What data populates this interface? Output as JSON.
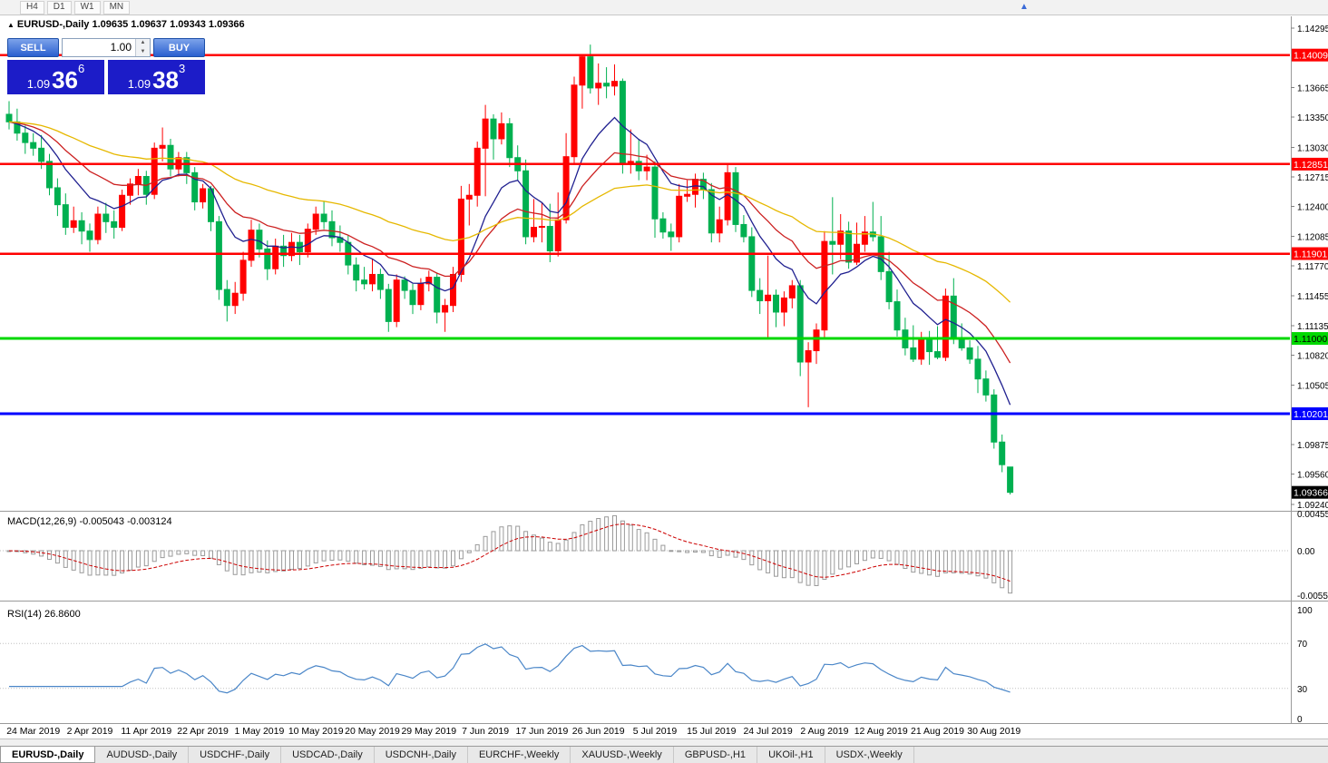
{
  "toolbar": {
    "periods": [
      "H4",
      "D1",
      "W1",
      "MN"
    ]
  },
  "chart_header": {
    "marker": "▲",
    "title": "EURUSD-,Daily",
    "ohlc": "1.09635 1.09637 1.09343 1.09366"
  },
  "one_click": {
    "sell_label": "SELL",
    "buy_label": "BUY",
    "volume": "1.00",
    "sell_price": {
      "big": "1.09",
      "mid": "36",
      "sup": "6"
    },
    "buy_price": {
      "big": "1.09",
      "mid": "38",
      "sup": "3"
    }
  },
  "chart_data": {
    "type": "candlestick",
    "symbol": "EURUSD-",
    "timeframe": "Daily",
    "up_color": "#ff0000",
    "down_color": "#00b050",
    "candles": [
      [
        1.1338,
        1.1352,
        1.1322,
        1.133
      ],
      [
        1.133,
        1.1344,
        1.131,
        1.1318
      ],
      [
        1.1318,
        1.1326,
        1.1296,
        1.1308
      ],
      [
        1.1308,
        1.1318,
        1.1294,
        1.1302
      ],
      [
        1.1302,
        1.1316,
        1.128,
        1.1288
      ],
      [
        1.1288,
        1.1296,
        1.1252,
        1.126
      ],
      [
        1.126,
        1.127,
        1.123,
        1.1242
      ],
      [
        1.1242,
        1.1254,
        1.121,
        1.1218
      ],
      [
        1.1218,
        1.124,
        1.1212,
        1.1225
      ],
      [
        1.1225,
        1.1234,
        1.12,
        1.1214
      ],
      [
        1.1214,
        1.1222,
        1.1192,
        1.1205
      ],
      [
        1.1205,
        1.124,
        1.12,
        1.1232
      ],
      [
        1.1232,
        1.1244,
        1.1212,
        1.1224
      ],
      [
        1.1224,
        1.1236,
        1.1206,
        1.1218
      ],
      [
        1.1218,
        1.1258,
        1.1214,
        1.1252
      ],
      [
        1.1252,
        1.127,
        1.1242,
        1.1264
      ],
      [
        1.1264,
        1.128,
        1.1252,
        1.1272
      ],
      [
        1.1272,
        1.1278,
        1.1242,
        1.1253
      ],
      [
        1.1253,
        1.1308,
        1.1248,
        1.1302
      ],
      [
        1.1302,
        1.1324,
        1.1288,
        1.1305
      ],
      [
        1.1305,
        1.1312,
        1.1272,
        1.128
      ],
      [
        1.128,
        1.1298,
        1.1272,
        1.1292
      ],
      [
        1.1292,
        1.1298,
        1.1264,
        1.1276
      ],
      [
        1.1276,
        1.1282,
        1.1236,
        1.1245
      ],
      [
        1.1245,
        1.1264,
        1.1238,
        1.1259
      ],
      [
        1.1259,
        1.1262,
        1.1214,
        1.1224
      ],
      [
        1.1224,
        1.123,
        1.1141,
        1.1152
      ],
      [
        1.1152,
        1.1162,
        1.1118,
        1.1135
      ],
      [
        1.1135,
        1.116,
        1.1126,
        1.1148
      ],
      [
        1.1148,
        1.1192,
        1.114,
        1.1183
      ],
      [
        1.1183,
        1.1226,
        1.1176,
        1.1215
      ],
      [
        1.1215,
        1.1222,
        1.1186,
        1.1195
      ],
      [
        1.1195,
        1.1204,
        1.1162,
        1.1174
      ],
      [
        1.1174,
        1.1206,
        1.1168,
        1.1198
      ],
      [
        1.1198,
        1.121,
        1.1176,
        1.1188
      ],
      [
        1.1188,
        1.1212,
        1.1182,
        1.1202
      ],
      [
        1.1202,
        1.121,
        1.1178,
        1.1192
      ],
      [
        1.1192,
        1.1222,
        1.1186,
        1.1216
      ],
      [
        1.1216,
        1.124,
        1.121,
        1.1232
      ],
      [
        1.1232,
        1.1246,
        1.1216,
        1.1224
      ],
      [
        1.1224,
        1.1236,
        1.1198,
        1.1207
      ],
      [
        1.1207,
        1.122,
        1.1192,
        1.1202
      ],
      [
        1.1202,
        1.121,
        1.1168,
        1.1178
      ],
      [
        1.1178,
        1.1186,
        1.115,
        1.1162
      ],
      [
        1.1162,
        1.1176,
        1.1152,
        1.1158
      ],
      [
        1.1158,
        1.1184,
        1.115,
        1.1168
      ],
      [
        1.1168,
        1.1174,
        1.1142,
        1.1152
      ],
      [
        1.1152,
        1.1158,
        1.1107,
        1.1118
      ],
      [
        1.1118,
        1.1168,
        1.1112,
        1.1162
      ],
      [
        1.1162,
        1.1166,
        1.1142,
        1.1151
      ],
      [
        1.1151,
        1.1158,
        1.1126,
        1.1136
      ],
      [
        1.1136,
        1.1164,
        1.113,
        1.1158
      ],
      [
        1.1158,
        1.1172,
        1.115,
        1.1165
      ],
      [
        1.1165,
        1.117,
        1.1116,
        1.1128
      ],
      [
        1.1128,
        1.1142,
        1.1107,
        1.1135
      ],
      [
        1.1135,
        1.1176,
        1.1128,
        1.1168
      ],
      [
        1.1168,
        1.1262,
        1.116,
        1.1248
      ],
      [
        1.1248,
        1.1264,
        1.122,
        1.1252
      ],
      [
        1.1252,
        1.1309,
        1.124,
        1.1302
      ],
      [
        1.1302,
        1.1348,
        1.1251,
        1.1333
      ],
      [
        1.1333,
        1.1338,
        1.129,
        1.1312
      ],
      [
        1.1312,
        1.134,
        1.1306,
        1.1328
      ],
      [
        1.1328,
        1.1334,
        1.1282,
        1.1292
      ],
      [
        1.1292,
        1.1305,
        1.1268,
        1.1278
      ],
      [
        1.1278,
        1.129,
        1.12,
        1.1208
      ],
      [
        1.1208,
        1.1248,
        1.1202,
        1.1218
      ],
      [
        1.1218,
        1.1244,
        1.1202,
        1.1219
      ],
      [
        1.1219,
        1.1243,
        1.1181,
        1.1193
      ],
      [
        1.1193,
        1.1255,
        1.1187,
        1.1226
      ],
      [
        1.1226,
        1.1318,
        1.1222,
        1.1293
      ],
      [
        1.1293,
        1.1378,
        1.1285,
        1.1369
      ],
      [
        1.1369,
        1.1402,
        1.1344,
        1.1399
      ],
      [
        1.1399,
        1.1412,
        1.136,
        1.1366
      ],
      [
        1.1366,
        1.1392,
        1.1348,
        1.1371
      ],
      [
        1.1371,
        1.1388,
        1.1355,
        1.1368
      ],
      [
        1.1368,
        1.1391,
        1.1358,
        1.1373
      ],
      [
        1.1373,
        1.1376,
        1.1275,
        1.1285
      ],
      [
        1.1285,
        1.1322,
        1.1275,
        1.1288
      ],
      [
        1.1288,
        1.1312,
        1.1268,
        1.1278
      ],
      [
        1.1278,
        1.1295,
        1.1268,
        1.1282
      ],
      [
        1.1282,
        1.1288,
        1.1207,
        1.1227
      ],
      [
        1.1227,
        1.1234,
        1.1206,
        1.1213
      ],
      [
        1.1213,
        1.1222,
        1.1193,
        1.1208
      ],
      [
        1.1208,
        1.1264,
        1.1202,
        1.1251
      ],
      [
        1.1251,
        1.1268,
        1.1245,
        1.1253
      ],
      [
        1.1253,
        1.1275,
        1.1239,
        1.1269
      ],
      [
        1.1269,
        1.1276,
        1.1248,
        1.1258
      ],
      [
        1.1258,
        1.1265,
        1.1202,
        1.1212
      ],
      [
        1.1212,
        1.124,
        1.1202,
        1.1226
      ],
      [
        1.1226,
        1.1285,
        1.122,
        1.1276
      ],
      [
        1.1276,
        1.1282,
        1.1213,
        1.1221
      ],
      [
        1.1221,
        1.1231,
        1.1202,
        1.1208
      ],
      [
        1.1208,
        1.1218,
        1.1144,
        1.1151
      ],
      [
        1.1151,
        1.1164,
        1.1126,
        1.114
      ],
      [
        1.114,
        1.1188,
        1.1101,
        1.1146
      ],
      [
        1.1146,
        1.1152,
        1.1112,
        1.1128
      ],
      [
        1.1128,
        1.115,
        1.1113,
        1.1143
      ],
      [
        1.1143,
        1.1162,
        1.1132,
        1.1156
      ],
      [
        1.1156,
        1.1162,
        1.106,
        1.1075
      ],
      [
        1.1075,
        1.1096,
        1.1027,
        1.1087
      ],
      [
        1.1087,
        1.1116,
        1.1073,
        1.1109
      ],
      [
        1.1109,
        1.1214,
        1.1101,
        1.1203
      ],
      [
        1.1203,
        1.125,
        1.1168,
        1.12
      ],
      [
        1.12,
        1.1232,
        1.1184,
        1.1214
      ],
      [
        1.1214,
        1.1224,
        1.1174,
        1.1181
      ],
      [
        1.1181,
        1.1223,
        1.1178,
        1.12
      ],
      [
        1.12,
        1.123,
        1.1192,
        1.1213
      ],
      [
        1.1213,
        1.1245,
        1.1203,
        1.1208
      ],
      [
        1.1208,
        1.123,
        1.1162,
        1.1171
      ],
      [
        1.1171,
        1.1192,
        1.1131,
        1.1139
      ],
      [
        1.1139,
        1.1152,
        1.1102,
        1.1109
      ],
      [
        1.1109,
        1.1122,
        1.1082,
        1.109
      ],
      [
        1.109,
        1.1114,
        1.1075,
        1.1078
      ],
      [
        1.1078,
        1.1107,
        1.1072,
        1.11
      ],
      [
        1.11,
        1.1108,
        1.1072,
        1.1086
      ],
      [
        1.1086,
        1.1113,
        1.1078,
        1.108
      ],
      [
        1.108,
        1.1153,
        1.1076,
        1.1145
      ],
      [
        1.1145,
        1.1164,
        1.1094,
        1.11
      ],
      [
        1.11,
        1.1116,
        1.1087,
        1.109
      ],
      [
        1.109,
        1.1098,
        1.1073,
        1.1078
      ],
      [
        1.1078,
        1.1092,
        1.1042,
        1.1057
      ],
      [
        1.1057,
        1.1066,
        1.1033,
        1.104
      ],
      [
        1.104,
        1.1046,
        1.0983,
        1.099
      ],
      [
        1.099,
        1.0998,
        1.0958,
        1.0966
      ],
      [
        1.09635,
        1.09637,
        1.09343,
        1.09366
      ]
    ],
    "date_labels": [
      {
        "i": 3,
        "label": "24 Mar 2019"
      },
      {
        "i": 10,
        "label": "2 Apr 2019"
      },
      {
        "i": 17,
        "label": "11 Apr 2019"
      },
      {
        "i": 24,
        "label": "22 Apr 2019"
      },
      {
        "i": 31,
        "label": "1 May 2019"
      },
      {
        "i": 38,
        "label": "10 May 2019"
      },
      {
        "i": 45,
        "label": "20 May 2019"
      },
      {
        "i": 52,
        "label": "29 May 2019"
      },
      {
        "i": 59,
        "label": "7 Jun 2019"
      },
      {
        "i": 66,
        "label": "17 Jun 2019"
      },
      {
        "i": 73,
        "label": "26 Jun 2019"
      },
      {
        "i": 80,
        "label": "5 Jul 2019"
      },
      {
        "i": 87,
        "label": "15 Jul 2019"
      },
      {
        "i": 94,
        "label": "24 Jul 2019"
      },
      {
        "i": 101,
        "label": "2 Aug 2019"
      },
      {
        "i": 108,
        "label": "12 Aug 2019"
      },
      {
        "i": 115,
        "label": "21 Aug 2019"
      },
      {
        "i": 122,
        "label": "30 Aug 2019"
      }
    ],
    "levels": [
      {
        "price": 1.14009,
        "label": "1.14009",
        "color": "#ff0000",
        "fg": "#ffffff",
        "width": 2.5
      },
      {
        "price": 1.12851,
        "label": "1.12851",
        "color": "#ff0000",
        "fg": "#ffffff",
        "width": 2.5
      },
      {
        "price": 1.11901,
        "label": "1.11901",
        "color": "#ff0000",
        "fg": "#ffffff",
        "width": 2.5
      },
      {
        "price": 1.11,
        "label": "1.11000",
        "color": "#00d800",
        "fg": "#000000",
        "width": 3
      },
      {
        "price": 1.10201,
        "label": "1.10201",
        "color": "#0000ff",
        "fg": "#ffffff",
        "width": 3
      }
    ],
    "current_price": {
      "price": 1.09366,
      "label": "1.09366",
      "bg": "#000000",
      "fg": "#ffffff"
    },
    "axis_ticks": [
      "1.14295",
      "1.13665",
      "1.13350",
      "1.13030",
      "1.12715",
      "1.12400",
      "1.12085",
      "1.11770",
      "1.11455",
      "1.11135",
      "1.10820",
      "1.10505",
      "1.09875",
      "1.09560",
      "1.09240"
    ],
    "ma": [
      {
        "period": 10,
        "color": "#202090"
      },
      {
        "period": 20,
        "color": "#cc2020"
      },
      {
        "period": 50,
        "color": "#e6b800"
      }
    ],
    "macd": {
      "label": "MACD(12,26,9) -0.005043 -0.003124",
      "fast": 12,
      "slow": 26,
      "signal": 9,
      "axis_labels": [
        "0.00455",
        "0.00",
        "-0.0055"
      ],
      "bar_color": "#9a9a9a",
      "signal_color": "#cc0000"
    },
    "rsi": {
      "label": "RSI(14) 26.8600",
      "period": 14,
      "axis_labels": [
        "100",
        "70",
        "30",
        "0"
      ],
      "level_lines": [
        70,
        30
      ],
      "line_color": "#4a86c8"
    }
  },
  "tabs": [
    {
      "label": "EURUSD-,Daily",
      "active": true
    },
    {
      "label": "AUDUSD-,Daily",
      "active": false
    },
    {
      "label": "USDCHF-,Daily",
      "active": false
    },
    {
      "label": "USDCAD-,Daily",
      "active": false
    },
    {
      "label": "USDCNH-,Daily",
      "active": false
    },
    {
      "label": "EURCHF-,Weekly",
      "active": false
    },
    {
      "label": "XAUUSD-,Weekly",
      "active": false
    },
    {
      "label": "GBPUSD-,H1",
      "active": false
    },
    {
      "label": "UKOil-,H1",
      "active": false
    },
    {
      "label": "USDX-,Weekly",
      "active": false
    }
  ]
}
